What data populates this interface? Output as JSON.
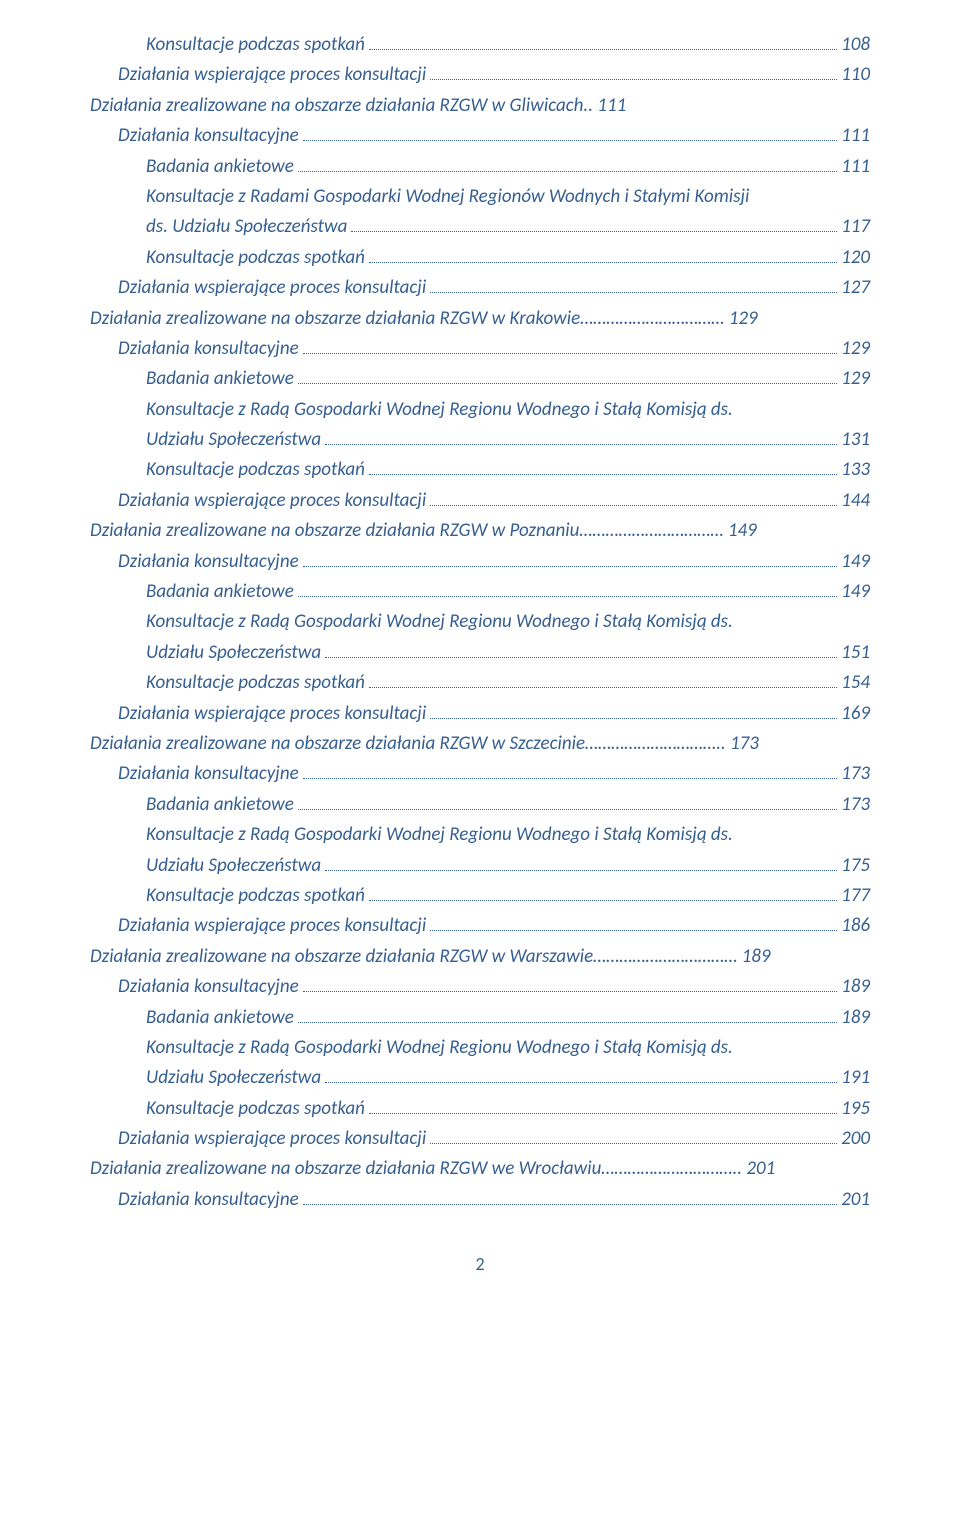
{
  "text_color": "#365f91",
  "background_color": "#ffffff",
  "font_family": "Calibri",
  "entries": [
    {
      "level": 2,
      "text": "Konsultacje  podczas spotkań",
      "page": "108"
    },
    {
      "level": 1,
      "text": "Działania wspierające proces konsultacji",
      "page": "110"
    },
    {
      "level": 0,
      "text": "Działania zrealizowane na obszarze działania RZGW w Gliwicach",
      "page": "..  111"
    },
    {
      "level": 1,
      "text": "Działania konsultacyjne",
      "page": "111"
    },
    {
      "level": 2,
      "text": "Badania ankietowe",
      "page": "111"
    },
    {
      "level": 2,
      "text": "Konsultacje z Radami Gospodarki Wodnej Regionów Wodnych i  Stałymi Komisji ds. Udziału Społeczeństwa",
      "page": "117"
    },
    {
      "level": 2,
      "text": "Konsultacje  podczas spotkań",
      "page": "120"
    },
    {
      "level": 1,
      "text": "Działania wspierające proces konsultacji",
      "page": "127"
    },
    {
      "level": 0,
      "text": "Działania zrealizowane na obszarze działania RZGW w Krakowie",
      "page": "……………………………  129"
    },
    {
      "level": 1,
      "text": "Działania konsultacyjne",
      "page": "129"
    },
    {
      "level": 2,
      "text": "Badania ankietowe",
      "page": "129"
    },
    {
      "level": 2,
      "text": "Konsultacje z Radą  Gospodarki Wodnej Regionu Wodnego i Stałą Komisją ds. Udziału Społeczeństwa",
      "page": "131"
    },
    {
      "level": 2,
      "text": "Konsultacje  podczas spotkań",
      "page": "133"
    },
    {
      "level": 1,
      "text": "Działania wspierające proces konsultacji",
      "page": "144"
    },
    {
      "level": 0,
      "text": "Działania zrealizowane na obszarze działania RZGW w Poznaniu",
      "page": "……………………………  149"
    },
    {
      "level": 1,
      "text": "Działania konsultacyjne",
      "page": "149"
    },
    {
      "level": 2,
      "text": "Badania ankietowe",
      "page": "149"
    },
    {
      "level": 2,
      "text": "Konsultacje z  Radą Gospodarki Wodnej Regionu Wodnego i Stałą Komisją ds. Udziału Społeczeństwa",
      "page": "151"
    },
    {
      "level": 2,
      "text": "Konsultacje  podczas spotkań",
      "page": "154"
    },
    {
      "level": 1,
      "text": "Działania wspierające proces konsultacji",
      "page": "169"
    },
    {
      "level": 0,
      "text": "Działania zrealizowane na obszarze działania RZGW w Szczecinie",
      "page": "………………………….. 173"
    },
    {
      "level": 1,
      "text": "Działania konsultacyjne",
      "page": "173"
    },
    {
      "level": 2,
      "text": "Badania ankietowe",
      "page": "173"
    },
    {
      "level": 2,
      "text": "Konsultacje z  Radą Gospodarki Wodnej Regionu Wodnego i Stałą Komisją ds. Udziału Społeczeństwa",
      "page": "175"
    },
    {
      "level": 2,
      "text": "Konsultacje  podczas spotkań",
      "page": "177"
    },
    {
      "level": 1,
      "text": "Działania wspierające proces konsultacji",
      "page": "186"
    },
    {
      "level": 0,
      "text": "Działania zrealizowane na obszarze działania RZGW w Warszawie",
      "page": "……………………………  189"
    },
    {
      "level": 1,
      "text": "Działania konsultacyjne",
      "page": "189"
    },
    {
      "level": 2,
      "text": "Badania ankietowe",
      "page": "189"
    },
    {
      "level": 2,
      "text": "Konsultacje z Radą Gospodarki Wodnej Regionu Wodnego i Stałą Komisją ds. Udziału Społeczeństwa",
      "page": "191"
    },
    {
      "level": 2,
      "text": "Konsultacje  podczas spotkań",
      "page": "195"
    },
    {
      "level": 1,
      "text": "Działania wspierające proces konsultacji",
      "page": "200"
    },
    {
      "level": 0,
      "text": "Działania zrealizowane na obszarze działania RZGW we Wrocławiu",
      "page": "…………………………..  201"
    },
    {
      "level": 1,
      "text": "Działania konsultacyjne",
      "page": "201"
    }
  ],
  "page_number": "2"
}
